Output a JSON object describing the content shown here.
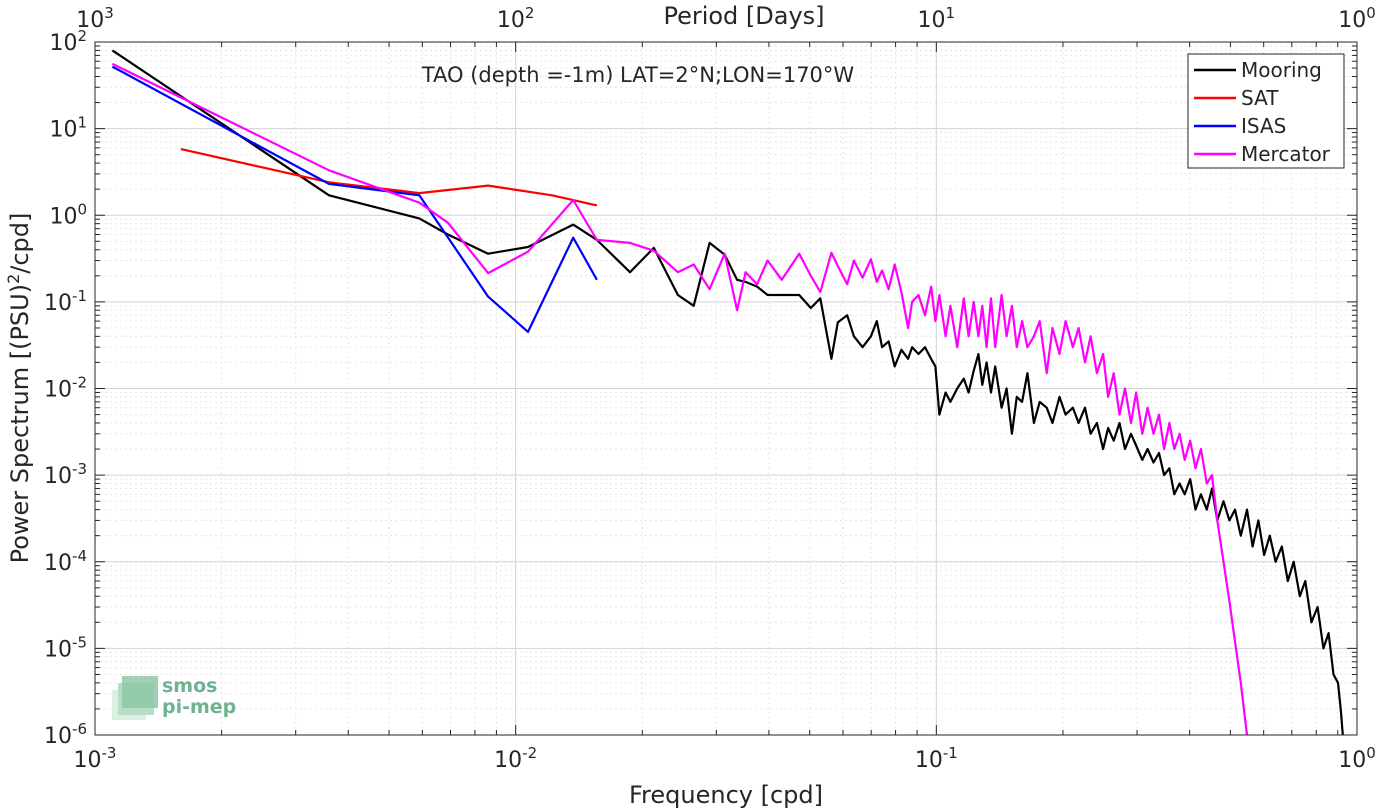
{
  "chart_data": {
    "type": "line",
    "title": "TAO (depth =-1m) LAT=2°N;LON=170°W",
    "xlabel": "Frequency [cpd]",
    "ylabel": "Power Spectrum [(PSU)²/cpd]",
    "ylabel_base": "Power Spectrum [(PSU)",
    "ylabel_sup": "2",
    "ylabel_tail": "/cpd]",
    "top_xlabel": "Period [Days]",
    "xscale": "log",
    "yscale": "log",
    "xlim": [
      0.001,
      1
    ],
    "ylim": [
      1e-06,
      100
    ],
    "grid": true,
    "legend_position": "top-right",
    "x_ticks": [
      {
        "value": 0.001,
        "base": "10",
        "exp": "-3"
      },
      {
        "value": 0.01,
        "base": "10",
        "exp": "-2"
      },
      {
        "value": 0.1,
        "base": "10",
        "exp": "-1"
      },
      {
        "value": 1,
        "base": "10",
        "exp": "0"
      }
    ],
    "top_ticks": [
      {
        "freq": 0.001,
        "base": "10",
        "exp": "3"
      },
      {
        "freq": 0.01,
        "base": "10",
        "exp": "2"
      },
      {
        "freq": 0.1,
        "base": "10",
        "exp": "1"
      },
      {
        "freq": 1,
        "base": "10",
        "exp": "0"
      }
    ],
    "y_ticks": [
      {
        "value": 100,
        "base": "10",
        "exp": "2"
      },
      {
        "value": 10,
        "base": "10",
        "exp": "1"
      },
      {
        "value": 1,
        "base": "10",
        "exp": "0"
      },
      {
        "value": 0.1,
        "base": "10",
        "exp": "-1"
      },
      {
        "value": 0.01,
        "base": "10",
        "exp": "-2"
      },
      {
        "value": 0.001,
        "base": "10",
        "exp": "-3"
      },
      {
        "value": 0.0001,
        "base": "10",
        "exp": "-4"
      },
      {
        "value": 1e-05,
        "base": "10",
        "exp": "-5"
      },
      {
        "value": 1e-06,
        "base": "10",
        "exp": "-6"
      }
    ],
    "series": [
      {
        "name": "Mooring",
        "color": "#000000",
        "points": [
          [
            0.0011,
            80
          ],
          [
            0.0036,
            1.7
          ],
          [
            0.0059,
            0.92
          ],
          [
            0.0069,
            0.6
          ],
          [
            0.0086,
            0.36
          ],
          [
            0.0107,
            0.43
          ],
          [
            0.0137,
            0.78
          ],
          [
            0.0156,
            0.52
          ],
          [
            0.0187,
            0.22
          ],
          [
            0.0213,
            0.42
          ],
          [
            0.0243,
            0.12
          ],
          [
            0.0265,
            0.09
          ],
          [
            0.0289,
            0.48
          ],
          [
            0.0314,
            0.35
          ],
          [
            0.0336,
            0.18
          ],
          [
            0.0352,
            0.17
          ],
          [
            0.0375,
            0.15
          ],
          [
            0.0397,
            0.12
          ],
          [
            0.0429,
            0.12
          ],
          [
            0.0472,
            0.12
          ],
          [
            0.0503,
            0.085
          ],
          [
            0.053,
            0.11
          ],
          [
            0.0563,
            0.022
          ],
          [
            0.0583,
            0.058
          ],
          [
            0.0614,
            0.07
          ],
          [
            0.0637,
            0.04
          ],
          [
            0.0668,
            0.03
          ],
          [
            0.0699,
            0.04
          ],
          [
            0.0722,
            0.06
          ],
          [
            0.0743,
            0.03
          ],
          [
            0.077,
            0.035
          ],
          [
            0.0796,
            0.018
          ],
          [
            0.0826,
            0.028
          ],
          [
            0.0857,
            0.022
          ],
          [
            0.0876,
            0.03
          ],
          [
            0.0907,
            0.025
          ],
          [
            0.094,
            0.03
          ],
          [
            0.0972,
            0.022
          ],
          [
            0.0995,
            0.018
          ],
          [
            0.1017,
            0.005
          ],
          [
            0.1052,
            0.009
          ],
          [
            0.108,
            0.007
          ],
          [
            0.1121,
            0.01
          ],
          [
            0.1162,
            0.013
          ],
          [
            0.1193,
            0.009
          ],
          [
            0.1227,
            0.016
          ],
          [
            0.1259,
            0.025
          ],
          [
            0.1286,
            0.011
          ],
          [
            0.1317,
            0.02
          ],
          [
            0.1349,
            0.009
          ],
          [
            0.138,
            0.018
          ],
          [
            0.1429,
            0.006
          ],
          [
            0.1469,
            0.01
          ],
          [
            0.1512,
            0.003
          ],
          [
            0.1553,
            0.008
          ],
          [
            0.1599,
            0.007
          ],
          [
            0.1646,
            0.015
          ],
          [
            0.1706,
            0.004
          ],
          [
            0.1761,
            0.007
          ],
          [
            0.183,
            0.006
          ],
          [
            0.1889,
            0.004
          ],
          [
            0.1962,
            0.008
          ],
          [
            0.2029,
            0.005
          ],
          [
            0.2112,
            0.006
          ],
          [
            0.2179,
            0.004
          ],
          [
            0.2256,
            0.006
          ],
          [
            0.2326,
            0.003
          ],
          [
            0.2408,
            0.004
          ],
          [
            0.2491,
            0.002
          ],
          [
            0.2561,
            0.0035
          ],
          [
            0.264,
            0.0025
          ],
          [
            0.2726,
            0.004
          ],
          [
            0.2808,
            0.002
          ],
          [
            0.2902,
            0.003
          ],
          [
            0.2984,
            0.0022
          ],
          [
            0.3088,
            0.0015
          ],
          [
            0.3178,
            0.002
          ],
          [
            0.3282,
            0.0014
          ],
          [
            0.3383,
            0.0018
          ],
          [
            0.3479,
            0.001
          ],
          [
            0.3582,
            0.0012
          ],
          [
            0.3679,
            0.0006
          ],
          [
            0.3787,
            0.0008
          ],
          [
            0.3895,
            0.0006
          ],
          [
            0.4013,
            0.0009
          ],
          [
            0.4132,
            0.0004
          ],
          [
            0.4256,
            0.0006
          ],
          [
            0.4394,
            0.0004
          ],
          [
            0.4523,
            0.0007
          ],
          [
            0.4656,
            0.0003
          ],
          [
            0.4816,
            0.0005
          ],
          [
            0.4974,
            0.0003
          ],
          [
            0.5128,
            0.0004
          ],
          [
            0.5295,
            0.0002
          ],
          [
            0.5476,
            0.0004
          ],
          [
            0.5646,
            0.00015
          ],
          [
            0.5829,
            0.0003
          ],
          [
            0.6013,
            0.00012
          ],
          [
            0.6205,
            0.0002
          ],
          [
            0.6405,
            0.0001
          ],
          [
            0.6624,
            0.00015
          ],
          [
            0.6846,
            6e-05
          ],
          [
            0.7071,
            0.0001
          ],
          [
            0.7311,
            4e-05
          ],
          [
            0.7535,
            6e-05
          ],
          [
            0.7793,
            2e-05
          ],
          [
            0.8058,
            3e-05
          ],
          [
            0.8318,
            1e-05
          ],
          [
            0.8561,
            1.5e-05
          ],
          [
            0.8792,
            5e-06
          ],
          [
            0.9012,
            4e-06
          ],
          [
            0.9144,
            2e-06
          ],
          [
            0.9251,
            1e-06
          ]
        ]
      },
      {
        "name": "SAT",
        "color": "#ff0000",
        "points": [
          [
            0.0016,
            5.8
          ],
          [
            0.0036,
            2.4
          ],
          [
            0.0059,
            1.8
          ],
          [
            0.0086,
            2.2
          ],
          [
            0.0122,
            1.7
          ],
          [
            0.0156,
            1.3
          ]
        ]
      },
      {
        "name": "ISAS",
        "color": "#0000ff",
        "points": [
          [
            0.0011,
            52
          ],
          [
            0.0036,
            2.3
          ],
          [
            0.0059,
            1.7
          ],
          [
            0.0086,
            0.115
          ],
          [
            0.0107,
            0.045
          ],
          [
            0.0137,
            0.55
          ],
          [
            0.0156,
            0.18
          ]
        ]
      },
      {
        "name": "Mercator",
        "color": "#ff00ff",
        "points": [
          [
            0.0011,
            56
          ],
          [
            0.0036,
            3.3
          ],
          [
            0.0059,
            1.4
          ],
          [
            0.0069,
            0.82
          ],
          [
            0.0086,
            0.215
          ],
          [
            0.0107,
            0.38
          ],
          [
            0.0137,
            1.5
          ],
          [
            0.0156,
            0.52
          ],
          [
            0.0187,
            0.48
          ],
          [
            0.0213,
            0.39
          ],
          [
            0.0243,
            0.22
          ],
          [
            0.0265,
            0.27
          ],
          [
            0.0289,
            0.14
          ],
          [
            0.0314,
            0.36
          ],
          [
            0.0336,
            0.08
          ],
          [
            0.0352,
            0.22
          ],
          [
            0.0375,
            0.16
          ],
          [
            0.0397,
            0.3
          ],
          [
            0.0429,
            0.18
          ],
          [
            0.0472,
            0.36
          ],
          [
            0.0503,
            0.2
          ],
          [
            0.053,
            0.13
          ],
          [
            0.0563,
            0.37
          ],
          [
            0.0583,
            0.26
          ],
          [
            0.0614,
            0.16
          ],
          [
            0.0637,
            0.3
          ],
          [
            0.0668,
            0.19
          ],
          [
            0.0699,
            0.31
          ],
          [
            0.0722,
            0.17
          ],
          [
            0.0743,
            0.23
          ],
          [
            0.077,
            0.14
          ],
          [
            0.0796,
            0.27
          ],
          [
            0.0826,
            0.13
          ],
          [
            0.0857,
            0.05
          ],
          [
            0.0876,
            0.1
          ],
          [
            0.0907,
            0.12
          ],
          [
            0.094,
            0.07
          ],
          [
            0.0972,
            0.15
          ],
          [
            0.0995,
            0.06
          ],
          [
            0.1017,
            0.12
          ],
          [
            0.1052,
            0.04
          ],
          [
            0.108,
            0.09
          ],
          [
            0.1121,
            0.03
          ],
          [
            0.1162,
            0.11
          ],
          [
            0.1193,
            0.04
          ],
          [
            0.1227,
            0.1
          ],
          [
            0.1259,
            0.04
          ],
          [
            0.1286,
            0.09
          ],
          [
            0.1317,
            0.03
          ],
          [
            0.1349,
            0.11
          ],
          [
            0.138,
            0.03
          ],
          [
            0.1429,
            0.12
          ],
          [
            0.1469,
            0.04
          ],
          [
            0.1512,
            0.09
          ],
          [
            0.1553,
            0.03
          ],
          [
            0.1599,
            0.06
          ],
          [
            0.1646,
            0.03
          ],
          [
            0.1706,
            0.04
          ],
          [
            0.1761,
            0.06
          ],
          [
            0.183,
            0.015
          ],
          [
            0.1889,
            0.05
          ],
          [
            0.1962,
            0.025
          ],
          [
            0.2029,
            0.06
          ],
          [
            0.2112,
            0.03
          ],
          [
            0.2179,
            0.05
          ],
          [
            0.2256,
            0.02
          ],
          [
            0.2326,
            0.04
          ],
          [
            0.2408,
            0.015
          ],
          [
            0.2491,
            0.025
          ],
          [
            0.2561,
            0.008
          ],
          [
            0.264,
            0.015
          ],
          [
            0.2726,
            0.005
          ],
          [
            0.2808,
            0.01
          ],
          [
            0.2902,
            0.004
          ],
          [
            0.2984,
            0.009
          ],
          [
            0.3088,
            0.003
          ],
          [
            0.3178,
            0.006
          ],
          [
            0.3282,
            0.003
          ],
          [
            0.3383,
            0.005
          ],
          [
            0.3479,
            0.002
          ],
          [
            0.3582,
            0.004
          ],
          [
            0.3679,
            0.002
          ],
          [
            0.3787,
            0.003
          ],
          [
            0.3895,
            0.0015
          ],
          [
            0.4013,
            0.0025
          ],
          [
            0.4132,
            0.0012
          ],
          [
            0.4256,
            0.002
          ],
          [
            0.4394,
            0.0008
          ],
          [
            0.4523,
            0.001
          ],
          [
            0.4656,
            0.0003
          ],
          [
            0.4816,
            0.0001
          ],
          [
            0.4974,
            3.5e-05
          ],
          [
            0.5128,
            1.2e-05
          ],
          [
            0.5295,
            4e-06
          ],
          [
            0.5476,
            1e-06
          ]
        ]
      }
    ]
  },
  "legend": {
    "items": [
      {
        "label": "Mooring",
        "color": "#000000"
      },
      {
        "label": "SAT",
        "color": "#ff0000"
      },
      {
        "label": "ISAS",
        "color": "#0000ff"
      },
      {
        "label": "Mercator",
        "color": "#ff00ff"
      }
    ]
  },
  "logo": {
    "line1": "smos",
    "line2": "pi-mep"
  }
}
